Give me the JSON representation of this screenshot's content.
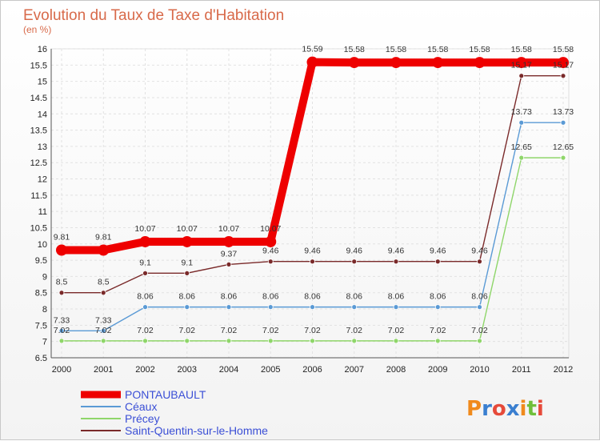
{
  "chart_data": {
    "type": "line",
    "title": "Evolution du Taux de Taxe d'Habitation",
    "subtitle": "(en %)",
    "x": [
      "2000",
      "2001",
      "2002",
      "2003",
      "2004",
      "2005",
      "2006",
      "2007",
      "2008",
      "2009",
      "2010",
      "2011",
      "2012"
    ],
    "ylim": [
      6.5,
      16
    ],
    "yticks": [
      "6.5",
      "7",
      "7.5",
      "8",
      "8.5",
      "9",
      "9.5",
      "10",
      "10.5",
      "11",
      "11.5",
      "12",
      "12.5",
      "13",
      "13.5",
      "14",
      "14.5",
      "15",
      "15.5",
      "16"
    ],
    "grid": true,
    "legend_position": "bottom-left",
    "series": [
      {
        "name": "PONTAUBAULT",
        "color": "#ee0000",
        "values": [
          9.81,
          9.81,
          10.07,
          10.07,
          10.07,
          10.07,
          15.59,
          15.58,
          15.58,
          15.58,
          15.58,
          15.58,
          15.58
        ],
        "labels": [
          "9.81",
          "9.81",
          "10.07",
          "10.07",
          "10.07",
          "10.07",
          "15.59",
          "15.58",
          "15.58",
          "15.58",
          "15.58",
          "15.58",
          "15.58"
        ]
      },
      {
        "name": "Céaux",
        "color": "#5a9ad5",
        "values": [
          7.33,
          7.33,
          8.06,
          8.06,
          8.06,
          8.06,
          8.06,
          8.06,
          8.06,
          8.06,
          8.06,
          13.73,
          13.73
        ],
        "labels": [
          "7.33",
          "7.33",
          "8.06",
          "8.06",
          "8.06",
          "8.06",
          "8.06",
          "8.06",
          "8.06",
          "8.06",
          "8.06",
          "13.73",
          "13.73"
        ]
      },
      {
        "name": "Précey",
        "color": "#8fd66a",
        "values": [
          7.02,
          7.02,
          7.02,
          7.02,
          7.02,
          7.02,
          7.02,
          7.02,
          7.02,
          7.02,
          7.02,
          12.65,
          12.65
        ],
        "labels": [
          "7.02",
          "7.02",
          "7.02",
          "7.02",
          "7.02",
          "7.02",
          "7.02",
          "7.02",
          "7.02",
          "7.02",
          "7.02",
          "12.65",
          "12.65"
        ]
      },
      {
        "name": "Saint-Quentin-sur-le-Homme",
        "color": "#7a2a2a",
        "values": [
          8.5,
          8.5,
          9.1,
          9.1,
          9.37,
          9.46,
          9.46,
          9.46,
          9.46,
          9.46,
          9.46,
          15.17,
          15.17
        ],
        "labels": [
          "8.5",
          "8.5",
          "9.1",
          "9.1",
          "9.37",
          "9.46",
          "9.46",
          "9.46",
          "9.46",
          "9.46",
          "9.46",
          "15.17",
          "15.17"
        ]
      }
    ]
  },
  "logo": {
    "text": "Proxiti",
    "colors": [
      "#f08a1c",
      "#3a7fd0",
      "#e64a3a",
      "#3a7fd0",
      "#f08a1c",
      "#6fbf3a",
      "#e64a3a"
    ]
  }
}
